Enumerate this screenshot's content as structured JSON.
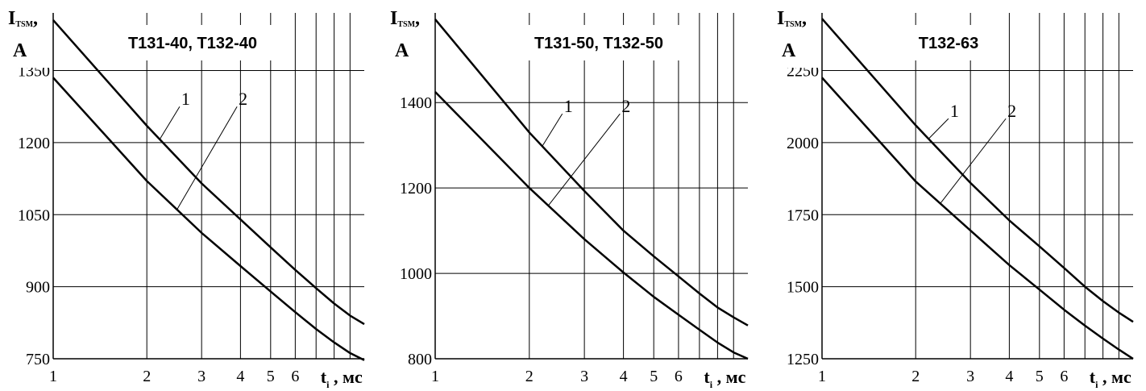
{
  "chart_data": [
    {
      "type": "line",
      "title": "T131-40, T132-40",
      "ylabel": {
        "main": "I",
        "sub": "TSM",
        "suffix": ",",
        "unit": "A"
      },
      "xlabel": {
        "main": "t",
        "sub": "i",
        "suffix": ", мс"
      },
      "x_scale": "log",
      "xlim": [
        1,
        10
      ],
      "ylim": [
        750,
        1470
      ],
      "x_ticks": [
        1,
        2,
        3,
        4,
        5,
        6
      ],
      "x_tick_labels": [
        "1",
        "2",
        "3",
        "4",
        "5",
        "6"
      ],
      "x_gridlines": [
        2,
        3,
        4,
        5,
        6,
        7,
        8,
        9
      ],
      "y_ticks": [
        750,
        900,
        1050,
        1200,
        1350
      ],
      "y_tick_labels": [
        "750",
        "900",
        "1050",
        "1200",
        "1350"
      ],
      "grid": true,
      "series": [
        {
          "name": "1",
          "x": [
            1,
            2,
            3,
            4,
            5,
            6,
            7,
            8,
            9,
            10
          ],
          "y": [
            1455,
            1235,
            1115,
            1040,
            982,
            935,
            897,
            865,
            840,
            822
          ]
        },
        {
          "name": "2",
          "x": [
            1,
            2,
            3,
            4,
            5,
            6,
            7,
            8,
            9,
            10
          ],
          "y": [
            1335,
            1120,
            1012,
            943,
            890,
            847,
            812,
            784,
            762,
            747
          ]
        }
      ],
      "annotations": [
        {
          "text": "1",
          "series": 0,
          "at_x": 2.2,
          "label_x": 2.55,
          "label_y": 1285
        },
        {
          "text": "2",
          "series": 1,
          "at_x": 2.5,
          "label_x": 3.9,
          "label_y": 1285
        }
      ]
    },
    {
      "type": "line",
      "title": "T131-50, T132-50",
      "ylabel": {
        "main": "I",
        "sub": "TSM",
        "suffix": ",",
        "unit": "A"
      },
      "xlabel": {
        "main": "t",
        "sub": "i",
        "suffix": ", мс"
      },
      "x_scale": "log",
      "xlim": [
        1,
        10
      ],
      "ylim": [
        800,
        1610
      ],
      "x_ticks": [
        1,
        2,
        3,
        4,
        5,
        6
      ],
      "x_tick_labels": [
        "1",
        "2",
        "3",
        "4",
        "5",
        "6"
      ],
      "x_gridlines": [
        2,
        3,
        4,
        5,
        6,
        7,
        8,
        9
      ],
      "y_ticks": [
        800,
        1000,
        1200,
        1400
      ],
      "y_tick_labels": [
        "800",
        "1000",
        "1200",
        "1400"
      ],
      "grid": true,
      "series": [
        {
          "name": "1",
          "x": [
            1,
            2,
            3,
            4,
            5,
            6,
            7,
            8,
            9,
            10
          ],
          "y": [
            1595,
            1330,
            1193,
            1100,
            1040,
            993,
            953,
            920,
            897,
            878
          ]
        },
        {
          "name": "2",
          "x": [
            1,
            2,
            3,
            4,
            5,
            6,
            7,
            8,
            9,
            10
          ],
          "y": [
            1425,
            1200,
            1080,
            1002,
            945,
            903,
            868,
            838,
            815,
            800
          ]
        }
      ],
      "annotations": [
        {
          "text": "1",
          "series": 0,
          "at_x": 2.2,
          "label_x": 2.55,
          "label_y": 1385
        },
        {
          "text": "2",
          "series": 1,
          "at_x": 2.3,
          "label_x": 3.9,
          "label_y": 1385
        }
      ]
    },
    {
      "type": "line",
      "title": "T132-63",
      "ylabel": {
        "main": "I",
        "sub": "TSM",
        "suffix": ",",
        "unit": "A"
      },
      "xlabel": {
        "main": "t",
        "sub": "i",
        "suffix": ", мс"
      },
      "x_scale": "log",
      "xlim": [
        1,
        10
      ],
      "ylim": [
        1250,
        2450
      ],
      "x_ticks": [
        1,
        2,
        3,
        4,
        5,
        6
      ],
      "x_tick_labels": [
        "1",
        "2",
        "3",
        "4",
        "5",
        "6"
      ],
      "x_gridlines": [
        2,
        3,
        4,
        5,
        6,
        7,
        8,
        9
      ],
      "y_ticks": [
        1250,
        1500,
        1750,
        2000,
        2250
      ],
      "y_tick_labels": [
        "1250",
        "1500",
        "1750",
        "2000",
        "2250"
      ],
      "grid": true,
      "series": [
        {
          "name": "1",
          "x": [
            1,
            2,
            3,
            4,
            5,
            6,
            7,
            8,
            9,
            10
          ],
          "y": [
            2430,
            2060,
            1860,
            1730,
            1640,
            1565,
            1500,
            1450,
            1410,
            1378
          ]
        },
        {
          "name": "2",
          "x": [
            1,
            2,
            3,
            4,
            5,
            6,
            7,
            8,
            9,
            10
          ],
          "y": [
            2225,
            1865,
            1695,
            1575,
            1490,
            1420,
            1365,
            1320,
            1282,
            1250
          ]
        }
      ],
      "annotations": [
        {
          "text": "1",
          "series": 0,
          "at_x": 2.2,
          "label_x": 2.55,
          "label_y": 2100
        },
        {
          "text": "2",
          "series": 1,
          "at_x": 2.4,
          "label_x": 3.9,
          "label_y": 2100
        }
      ]
    }
  ]
}
